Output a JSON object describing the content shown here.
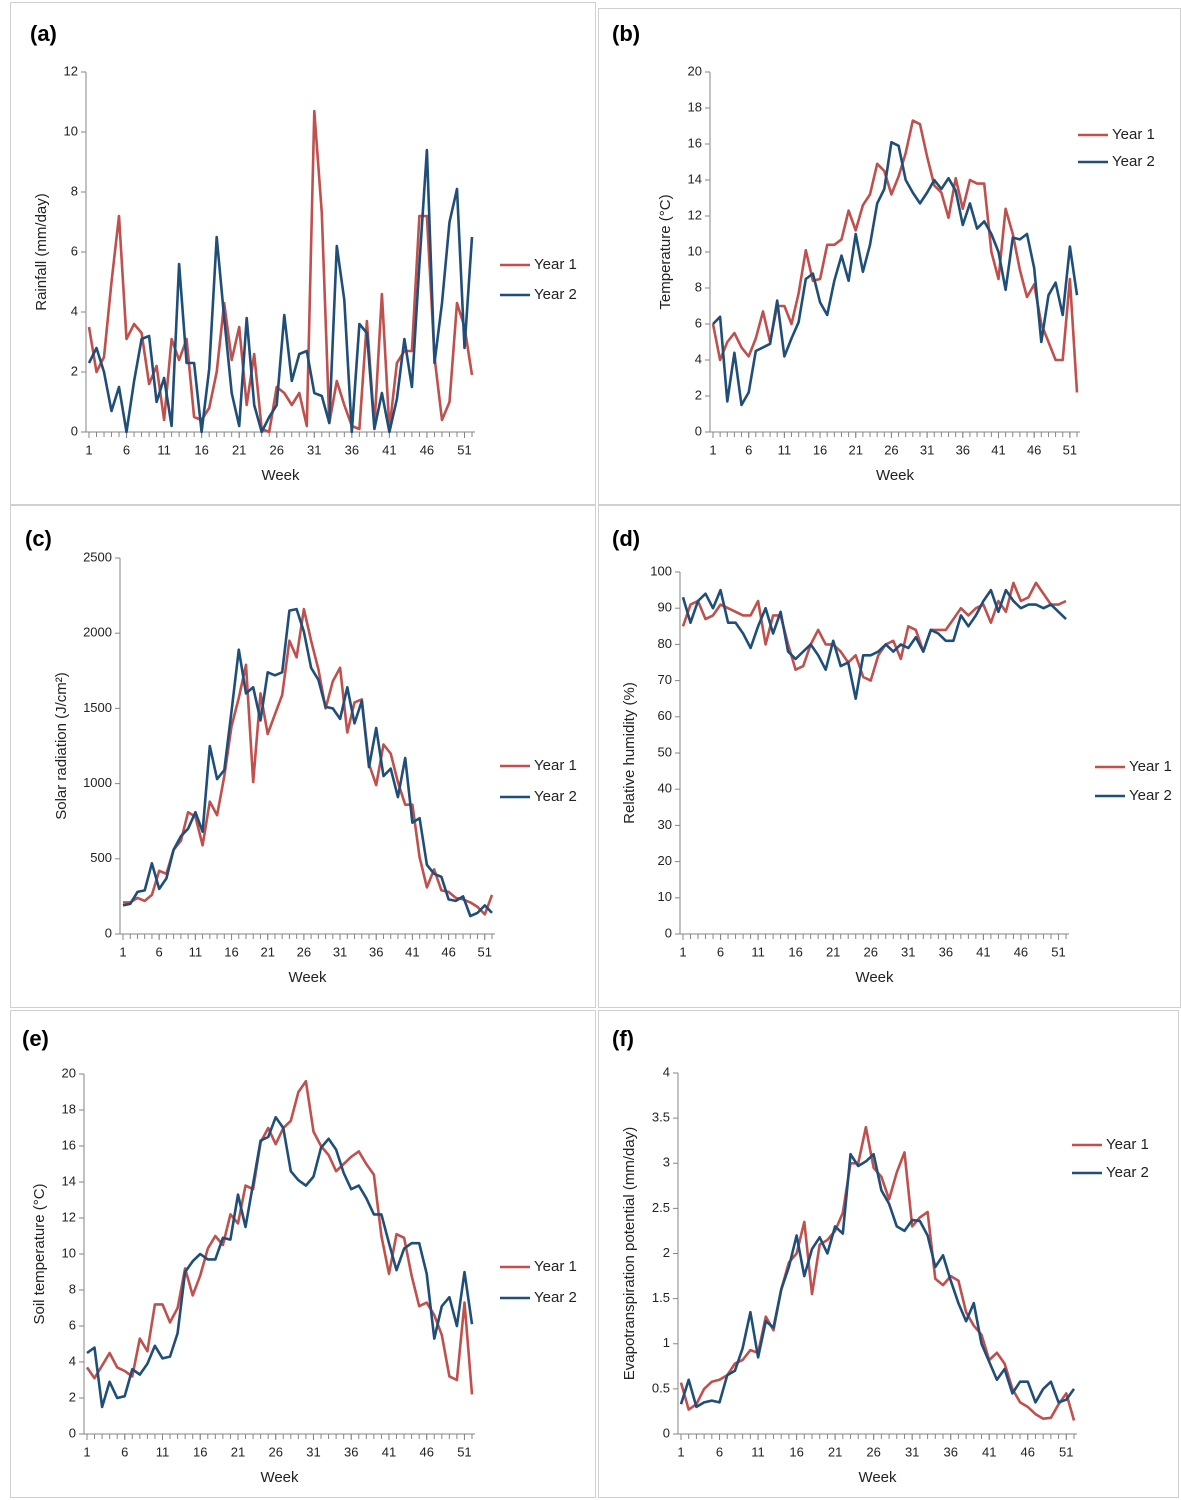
{
  "chart_data": [
    {
      "type": "line",
      "label": "(a)",
      "x_label": "Week",
      "y_label": "Rainfall (mm/day)",
      "x": [
        1,
        2,
        3,
        4,
        5,
        6,
        7,
        8,
        9,
        10,
        11,
        12,
        13,
        14,
        15,
        16,
        17,
        18,
        19,
        20,
        21,
        22,
        23,
        24,
        25,
        26,
        27,
        28,
        29,
        30,
        31,
        32,
        33,
        34,
        35,
        36,
        37,
        38,
        39,
        40,
        41,
        42,
        43,
        44,
        45,
        46,
        47,
        48,
        49,
        50,
        51,
        52
      ],
      "xlim": [
        1,
        52
      ],
      "xticks": [
        1,
        6,
        11,
        16,
        21,
        26,
        31,
        36,
        41,
        46,
        51
      ],
      "ylim": [
        0,
        12
      ],
      "yticks": [
        0,
        2,
        4,
        6,
        8,
        10,
        12
      ],
      "series": [
        {
          "name": "Year 1",
          "color": "#c0504d",
          "values": [
            3.5,
            2.0,
            2.5,
            5.0,
            7.2,
            3.1,
            3.6,
            3.3,
            1.6,
            2.2,
            0.4,
            3.1,
            2.4,
            3.1,
            0.5,
            0.4,
            0.8,
            2.0,
            4.3,
            2.4,
            3.5,
            0.9,
            2.6,
            0.1,
            0.0,
            1.5,
            1.3,
            0.9,
            1.3,
            0.2,
            10.7,
            7.3,
            0.3,
            1.7,
            0.9,
            0.2,
            0.1,
            3.7,
            0.2,
            4.6,
            0.1,
            2.3,
            2.7,
            2.7,
            7.2,
            7.2,
            2.5,
            0.4,
            1.0,
            4.3,
            3.5,
            1.9
          ]
        },
        {
          "name": "Year 2",
          "color": "#1f4e79",
          "values": [
            2.3,
            2.8,
            2.0,
            0.7,
            1.5,
            0.0,
            1.7,
            3.1,
            3.2,
            1.0,
            1.8,
            0.2,
            5.6,
            2.3,
            2.3,
            0.0,
            2.1,
            6.5,
            3.8,
            1.3,
            0.2,
            3.8,
            0.9,
            0.0,
            0.5,
            0.9,
            3.9,
            1.7,
            2.6,
            2.7,
            1.3,
            1.2,
            0.3,
            6.2,
            4.4,
            0.0,
            3.6,
            3.3,
            0.1,
            1.3,
            0.0,
            1.1,
            3.1,
            1.5,
            5.6,
            9.4,
            2.3,
            4.3,
            7.0,
            8.1,
            2.8,
            6.5
          ]
        }
      ]
    },
    {
      "type": "line",
      "label": "(b)",
      "x_label": "Week",
      "y_label": "Temperature (°C)",
      "x": [
        1,
        2,
        3,
        4,
        5,
        6,
        7,
        8,
        9,
        10,
        11,
        12,
        13,
        14,
        15,
        16,
        17,
        18,
        19,
        20,
        21,
        22,
        23,
        24,
        25,
        26,
        27,
        28,
        29,
        30,
        31,
        32,
        33,
        34,
        35,
        36,
        37,
        38,
        39,
        40,
        41,
        42,
        43,
        44,
        45,
        46,
        47,
        48,
        49,
        50,
        51,
        52
      ],
      "xlim": [
        1,
        52
      ],
      "xticks": [
        1,
        6,
        11,
        16,
        21,
        26,
        31,
        36,
        41,
        46,
        51
      ],
      "ylim": [
        0,
        20
      ],
      "yticks": [
        0,
        2,
        4,
        6,
        8,
        10,
        12,
        14,
        16,
        18,
        20
      ],
      "series": [
        {
          "name": "Year 1",
          "color": "#c0504d",
          "values": [
            6.0,
            4.0,
            5.0,
            5.5,
            4.7,
            4.2,
            5.2,
            6.7,
            5.0,
            7.0,
            7.0,
            6.0,
            7.7,
            10.1,
            8.4,
            8.5,
            10.4,
            10.4,
            10.7,
            12.3,
            11.2,
            12.6,
            13.2,
            14.9,
            14.5,
            13.2,
            14.2,
            15.5,
            17.3,
            17.1,
            15.3,
            13.7,
            13.3,
            11.9,
            14.1,
            12.4,
            14.0,
            13.8,
            13.8,
            10.0,
            8.5,
            12.4,
            11.0,
            9.0,
            7.5,
            8.2,
            6.0,
            5.0,
            4.0,
            4.0,
            8.5,
            2.2
          ]
        },
        {
          "name": "Year 2",
          "color": "#1f4e79",
          "values": [
            6.0,
            6.4,
            1.7,
            4.4,
            1.5,
            2.2,
            4.5,
            4.7,
            4.9,
            7.3,
            4.2,
            5.2,
            6.1,
            8.5,
            8.8,
            7.2,
            6.5,
            8.4,
            9.8,
            8.4,
            11.0,
            8.9,
            10.4,
            12.7,
            13.5,
            16.1,
            15.9,
            14.0,
            13.3,
            12.7,
            13.3,
            14.0,
            13.5,
            14.1,
            13.4,
            11.5,
            12.7,
            11.3,
            11.7,
            11.0,
            10.0,
            7.9,
            10.8,
            10.7,
            11.0,
            9.1,
            5.0,
            7.6,
            8.3,
            6.5,
            10.3,
            7.6
          ]
        }
      ]
    },
    {
      "type": "line",
      "label": "(c)",
      "x_label": "Week",
      "y_label": "Solar radiation (J/cm²)",
      "x": [
        1,
        2,
        3,
        4,
        5,
        6,
        7,
        8,
        9,
        10,
        11,
        12,
        13,
        14,
        15,
        16,
        17,
        18,
        19,
        20,
        21,
        22,
        23,
        24,
        25,
        26,
        27,
        28,
        29,
        30,
        31,
        32,
        33,
        34,
        35,
        36,
        37,
        38,
        39,
        40,
        41,
        42,
        43,
        44,
        45,
        46,
        47,
        48,
        49,
        50,
        51,
        52
      ],
      "xlim": [
        1,
        52
      ],
      "xticks": [
        1,
        6,
        11,
        16,
        21,
        26,
        31,
        36,
        41,
        46,
        51
      ],
      "ylim": [
        0,
        2500
      ],
      "yticks": [
        0,
        500,
        1000,
        1500,
        2000,
        2500
      ],
      "series": [
        {
          "name": "Year 1",
          "color": "#c0504d",
          "values": [
            210,
            210,
            240,
            220,
            260,
            420,
            400,
            560,
            620,
            810,
            780,
            590,
            880,
            790,
            1050,
            1380,
            1570,
            1790,
            1010,
            1600,
            1330,
            1460,
            1590,
            1950,
            1840,
            2160,
            1950,
            1760,
            1500,
            1680,
            1770,
            1340,
            1540,
            1560,
            1130,
            990,
            1260,
            1200,
            1010,
            860,
            860,
            510,
            310,
            430,
            290,
            280,
            240,
            230,
            210,
            180,
            130,
            260
          ]
        },
        {
          "name": "Year 2",
          "color": "#1f4e79",
          "values": [
            190,
            200,
            280,
            290,
            470,
            300,
            370,
            560,
            650,
            700,
            810,
            680,
            1250,
            1030,
            1090,
            1480,
            1890,
            1600,
            1640,
            1420,
            1740,
            1720,
            1740,
            2150,
            2160,
            2010,
            1770,
            1690,
            1510,
            1500,
            1430,
            1640,
            1400,
            1550,
            1110,
            1370,
            1050,
            1100,
            910,
            1170,
            740,
            770,
            460,
            400,
            380,
            230,
            220,
            250,
            120,
            140,
            190,
            140
          ]
        }
      ]
    },
    {
      "type": "line",
      "label": "(d)",
      "x_label": "Week",
      "y_label": "Relative humidity (%)",
      "x": [
        1,
        2,
        3,
        4,
        5,
        6,
        7,
        8,
        9,
        10,
        11,
        12,
        13,
        14,
        15,
        16,
        17,
        18,
        19,
        20,
        21,
        22,
        23,
        24,
        25,
        26,
        27,
        28,
        29,
        30,
        31,
        32,
        33,
        34,
        35,
        36,
        37,
        38,
        39,
        40,
        41,
        42,
        43,
        44,
        45,
        46,
        47,
        48,
        49,
        50,
        51,
        52
      ],
      "xlim": [
        1,
        52
      ],
      "xticks": [
        1,
        6,
        11,
        16,
        21,
        26,
        31,
        36,
        41,
        46,
        51
      ],
      "ylim": [
        0,
        100
      ],
      "yticks": [
        0,
        10,
        20,
        30,
        40,
        50,
        60,
        70,
        80,
        90,
        100
      ],
      "series": [
        {
          "name": "Year 1",
          "color": "#c0504d",
          "values": [
            85,
            91,
            92,
            87,
            88,
            91,
            90,
            89,
            88,
            88,
            92,
            80,
            88,
            88,
            80,
            73,
            74,
            80,
            84,
            80,
            80,
            78,
            75,
            77,
            71,
            70,
            77,
            80,
            81,
            76,
            85,
            84,
            78,
            84,
            84,
            84,
            87,
            90,
            88,
            90,
            91,
            86,
            92,
            89,
            97,
            92,
            93,
            97,
            94,
            91,
            91,
            92
          ]
        },
        {
          "name": "Year 2",
          "color": "#1f4e79",
          "values": [
            93,
            86,
            92,
            94,
            90,
            95,
            86,
            86,
            83,
            79,
            85,
            90,
            83,
            89,
            78,
            76,
            78,
            80,
            77,
            73,
            81,
            74,
            75,
            65,
            77,
            77,
            78,
            80,
            78,
            80,
            79,
            82,
            78,
            84,
            83,
            81,
            81,
            88,
            85,
            88,
            92,
            95,
            89,
            95,
            92,
            90,
            91,
            91,
            90,
            91,
            89,
            87
          ]
        }
      ]
    },
    {
      "type": "line",
      "label": "(e)",
      "x_label": "Week",
      "y_label": "Soil temperature (°C)",
      "x": [
        1,
        2,
        3,
        4,
        5,
        6,
        7,
        8,
        9,
        10,
        11,
        12,
        13,
        14,
        15,
        16,
        17,
        18,
        19,
        20,
        21,
        22,
        23,
        24,
        25,
        26,
        27,
        28,
        29,
        30,
        31,
        32,
        33,
        34,
        35,
        36,
        37,
        38,
        39,
        40,
        41,
        42,
        43,
        44,
        45,
        46,
        47,
        48,
        49,
        50,
        51,
        52
      ],
      "xlim": [
        1,
        52
      ],
      "xticks": [
        1,
        6,
        11,
        16,
        21,
        26,
        31,
        36,
        41,
        46,
        51
      ],
      "ylim": [
        0,
        20
      ],
      "yticks": [
        0,
        2,
        4,
        6,
        8,
        10,
        12,
        14,
        16,
        18,
        20
      ],
      "series": [
        {
          "name": "Year 1",
          "color": "#c0504d",
          "values": [
            3.7,
            3.1,
            3.8,
            4.5,
            3.7,
            3.5,
            3.2,
            5.3,
            4.6,
            7.2,
            7.2,
            6.2,
            7.0,
            9.2,
            7.7,
            8.8,
            10.3,
            11.0,
            10.5,
            12.2,
            11.7,
            13.8,
            13.6,
            16.2,
            17.0,
            16.1,
            17.0,
            17.4,
            19.0,
            19.6,
            16.8,
            16.0,
            15.5,
            14.6,
            15.0,
            15.4,
            15.7,
            15.0,
            14.4,
            11.0,
            8.9,
            11.1,
            10.9,
            8.8,
            7.1,
            7.3,
            6.6,
            5.5,
            3.2,
            3.0,
            7.3,
            2.2
          ]
        },
        {
          "name": "Year 2",
          "color": "#1f4e79",
          "values": [
            4.5,
            4.8,
            1.5,
            2.9,
            2.0,
            2.1,
            3.6,
            3.3,
            3.9,
            4.9,
            4.2,
            4.3,
            5.6,
            9.0,
            9.6,
            10.0,
            9.7,
            9.7,
            10.9,
            10.8,
            13.3,
            11.5,
            13.9,
            16.3,
            16.5,
            17.6,
            17.0,
            14.6,
            14.1,
            13.8,
            14.3,
            15.9,
            16.4,
            15.8,
            14.5,
            13.6,
            13.8,
            13.1,
            12.2,
            12.2,
            10.6,
            9.1,
            10.3,
            10.6,
            10.6,
            8.9,
            5.3,
            7.1,
            7.6,
            6.0,
            9.0,
            6.1
          ]
        }
      ]
    },
    {
      "type": "line",
      "label": "(f)",
      "x_label": "Week",
      "y_label": "Evapotranspiration potential (mm/day)",
      "x": [
        1,
        2,
        3,
        4,
        5,
        6,
        7,
        8,
        9,
        10,
        11,
        12,
        13,
        14,
        15,
        16,
        17,
        18,
        19,
        20,
        21,
        22,
        23,
        24,
        25,
        26,
        27,
        28,
        29,
        30,
        31,
        32,
        33,
        34,
        35,
        36,
        37,
        38,
        39,
        40,
        41,
        42,
        43,
        44,
        45,
        46,
        47,
        48,
        49,
        50,
        51,
        52
      ],
      "xlim": [
        1,
        52
      ],
      "xticks": [
        1,
        6,
        11,
        16,
        21,
        26,
        31,
        36,
        41,
        46,
        51
      ],
      "ylim": [
        0,
        4
      ],
      "yticks": [
        0,
        0.5,
        1,
        1.5,
        2,
        2.5,
        3,
        3.5,
        4
      ],
      "series": [
        {
          "name": "Year 1",
          "color": "#c0504d",
          "values": [
            0.57,
            0.27,
            0.33,
            0.5,
            0.58,
            0.6,
            0.65,
            0.78,
            0.82,
            0.93,
            0.9,
            1.3,
            1.15,
            1.6,
            1.9,
            2.0,
            2.35,
            1.55,
            2.1,
            2.15,
            2.25,
            2.45,
            3.0,
            3.0,
            3.4,
            2.95,
            2.85,
            2.6,
            2.9,
            3.12,
            2.3,
            2.4,
            2.46,
            1.72,
            1.65,
            1.75,
            1.7,
            1.35,
            1.2,
            1.1,
            0.82,
            0.9,
            0.78,
            0.5,
            0.35,
            0.3,
            0.22,
            0.17,
            0.18,
            0.33,
            0.45,
            0.15
          ]
        },
        {
          "name": "Year 2",
          "color": "#1f4e79",
          "values": [
            0.33,
            0.6,
            0.3,
            0.35,
            0.37,
            0.35,
            0.65,
            0.7,
            0.95,
            1.35,
            0.85,
            1.25,
            1.18,
            1.6,
            1.85,
            2.2,
            1.75,
            2.05,
            2.18,
            2.0,
            2.3,
            2.22,
            3.1,
            2.97,
            3.02,
            3.1,
            2.7,
            2.55,
            2.3,
            2.25,
            2.37,
            2.36,
            2.2,
            1.85,
            1.98,
            1.7,
            1.45,
            1.25,
            1.45,
            1.0,
            0.8,
            0.6,
            0.72,
            0.45,
            0.58,
            0.58,
            0.35,
            0.5,
            0.58,
            0.35,
            0.38,
            0.5
          ]
        }
      ]
    }
  ]
}
